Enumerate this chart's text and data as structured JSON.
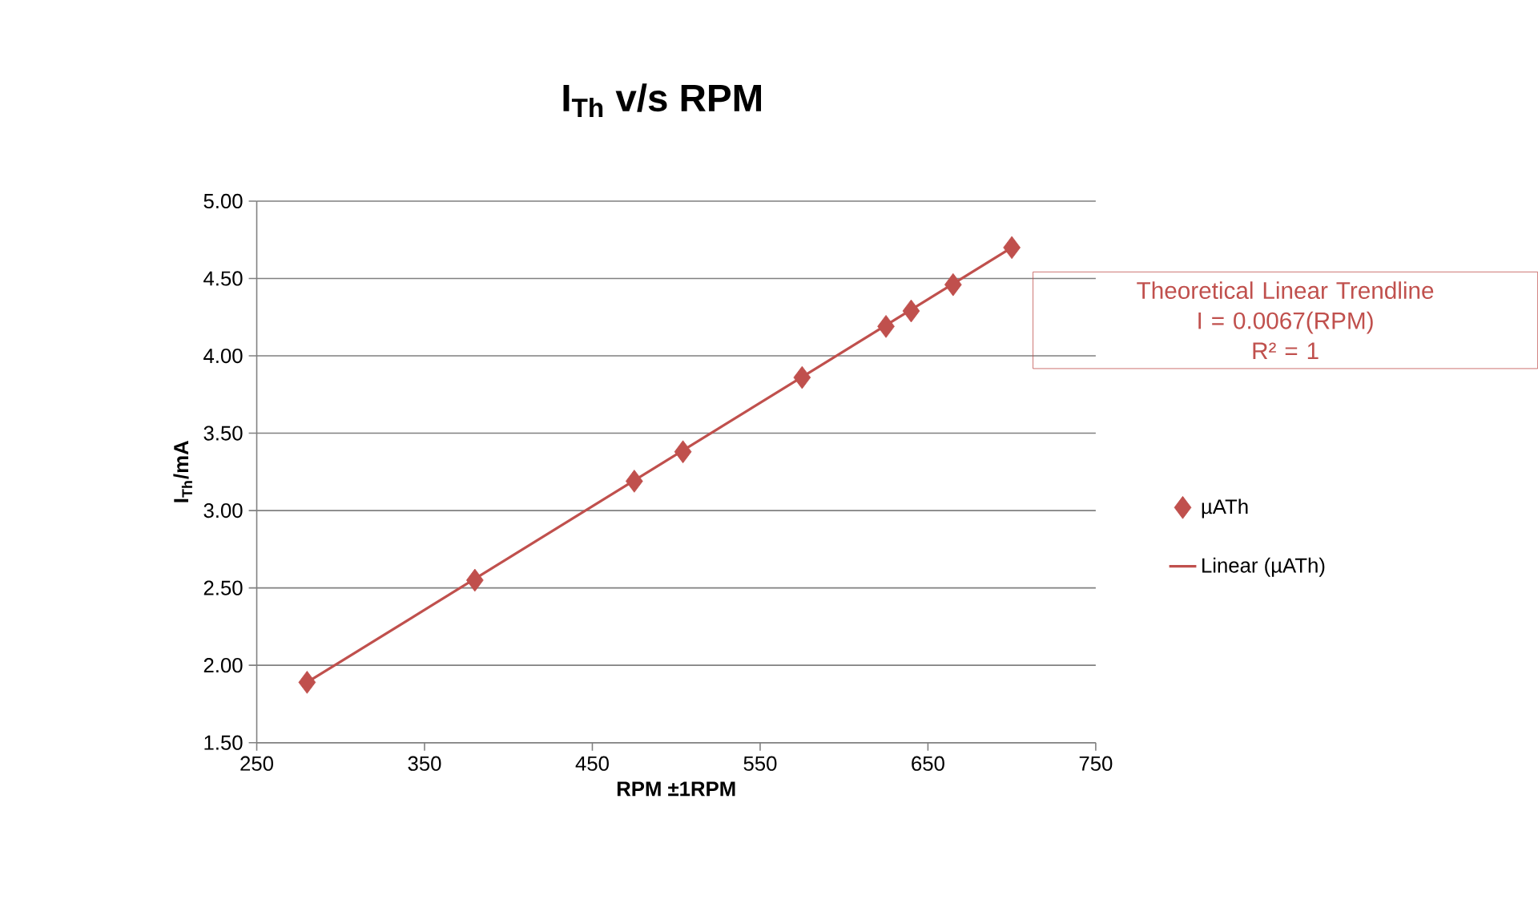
{
  "chart_data": {
    "type": "scatter",
    "title": "I$_{Th}$  v/s RPM",
    "xlabel": "RPM ±1RPM",
    "ylabel": "I$_{Th}$/mA",
    "xlim": [
      250,
      750
    ],
    "xticks": [
      250,
      350,
      450,
      550,
      650,
      750
    ],
    "ylim": [
      1.5,
      5.0
    ],
    "yticks": [
      {
        "value": 1.5,
        "label": "1.50"
      },
      {
        "value": 2.0,
        "label": "2.00"
      },
      {
        "value": 2.5,
        "label": "2.50"
      },
      {
        "value": 3.0,
        "label": "3.00"
      },
      {
        "value": 3.5,
        "label": "3.50"
      },
      {
        "value": 4.0,
        "label": "4.00"
      },
      {
        "value": 4.5,
        "label": "4.50"
      },
      {
        "value": 5.0,
        "label": "5.00"
      }
    ],
    "grid": "y",
    "legend": "right",
    "annotations": [
      "Theoretical Linear Trendline",
      "I = 0.0067(RPM)",
      "R² = 1"
    ],
    "series": [
      {
        "name": "µATh",
        "marker": "diamond",
        "color": "#c0504d",
        "x": [
          280,
          380,
          475,
          504,
          575,
          625,
          640,
          665,
          700
        ],
        "values": [
          1.89,
          2.55,
          3.19,
          3.38,
          3.86,
          4.19,
          4.29,
          4.46,
          4.7
        ]
      },
      {
        "name": "Linear (µATh)",
        "type": "line",
        "marker": "none",
        "line_style": "solid",
        "color": "#c0504d",
        "x": [
          280,
          700
        ],
        "values": [
          1.89,
          4.7
        ]
      }
    ]
  }
}
